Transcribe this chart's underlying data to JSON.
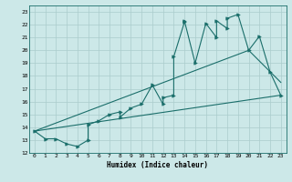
{
  "title": "",
  "xlabel": "Humidex (Indice chaleur)",
  "background_color": "#cce8e8",
  "grid_color": "#aacccc",
  "line_color": "#1a6e6a",
  "xlim": [
    -0.5,
    23.5
  ],
  "ylim": [
    12,
    23.5
  ],
  "yticks": [
    12,
    13,
    14,
    15,
    16,
    17,
    18,
    19,
    20,
    21,
    22,
    23
  ],
  "xticks": [
    0,
    1,
    2,
    3,
    4,
    5,
    6,
    7,
    8,
    9,
    10,
    11,
    12,
    13,
    14,
    15,
    16,
    17,
    18,
    19,
    20,
    21,
    22,
    23
  ],
  "zigzag_x": [
    0,
    1,
    2,
    3,
    4,
    5,
    5,
    6,
    7,
    8,
    8,
    9,
    10,
    11,
    12,
    12,
    13,
    13,
    14,
    14,
    15,
    16,
    17,
    17,
    18,
    18,
    19,
    20,
    21,
    22,
    23
  ],
  "zigzag_y": [
    13.7,
    13.1,
    13.1,
    12.7,
    12.5,
    13.0,
    14.2,
    14.5,
    15.0,
    15.2,
    14.8,
    15.5,
    15.8,
    17.3,
    15.8,
    16.3,
    16.5,
    19.5,
    22.2,
    22.3,
    19.0,
    22.1,
    21.0,
    22.3,
    21.7,
    22.5,
    22.8,
    20.0,
    21.1,
    18.3,
    16.5
  ],
  "line1_x": [
    0,
    23
  ],
  "line1_y": [
    13.7,
    16.5
  ],
  "line2_x": [
    0,
    20,
    23
  ],
  "line2_y": [
    13.7,
    20.0,
    17.5
  ],
  "xlabel_fontsize": 5.5,
  "tick_fontsize": 4.5
}
